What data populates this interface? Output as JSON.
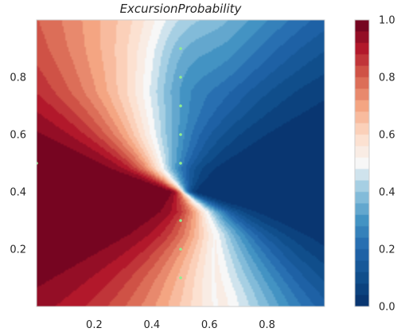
{
  "chart_data": {
    "type": "heatmap",
    "subtype": "filled-contour",
    "title": "ExcursionProbability",
    "xlabel": "",
    "ylabel": "",
    "xlim": [
      0,
      1
    ],
    "ylim": [
      0,
      1
    ],
    "x_ticks": [
      0.2,
      0.4,
      0.6,
      0.8
    ],
    "y_ticks": [
      0.2,
      0.4,
      0.6,
      0.8
    ],
    "x_tick_labels": [
      "0.2",
      "0.4",
      "0.6",
      "0.8"
    ],
    "y_tick_labels": [
      "0.2",
      "0.4",
      "0.6",
      "0.8"
    ],
    "colormap": "RdBu_r",
    "colorbar": {
      "range": [
        0.0,
        1.0
      ],
      "ticks": [
        0.0,
        0.2,
        0.4,
        0.6,
        0.8,
        1.0
      ],
      "tick_labels": [
        "0.0",
        "0.2",
        "0.4",
        "0.6",
        "0.8",
        "1.0"
      ],
      "levels": 25
    },
    "grid": false,
    "boundary_curve": {
      "description_points": [
        [
          0.48,
          1.0
        ],
        [
          0.44,
          0.9
        ],
        [
          0.4,
          0.75
        ],
        [
          0.41,
          0.6
        ],
        [
          0.44,
          0.48
        ],
        [
          0.51,
          0.4
        ],
        [
          0.59,
          0.33
        ],
        [
          0.62,
          0.25
        ],
        [
          0.62,
          0.1
        ],
        [
          0.63,
          0.0
        ]
      ]
    },
    "design_points": {
      "color": "#90ee90",
      "points": [
        [
          0.5,
          0.9
        ],
        [
          0.5,
          0.8
        ],
        [
          0.5,
          0.7
        ],
        [
          0.5,
          0.6
        ],
        [
          0.5,
          0.5
        ],
        [
          0.5,
          0.3
        ],
        [
          0.5,
          0.2
        ],
        [
          0.5,
          0.1
        ],
        [
          0.0,
          0.5
        ]
      ]
    },
    "colors": {
      "low": "#073a72",
      "mid": "#f6f5f4",
      "high": "#75011b",
      "axis_spine": "#cfcfcf"
    }
  }
}
